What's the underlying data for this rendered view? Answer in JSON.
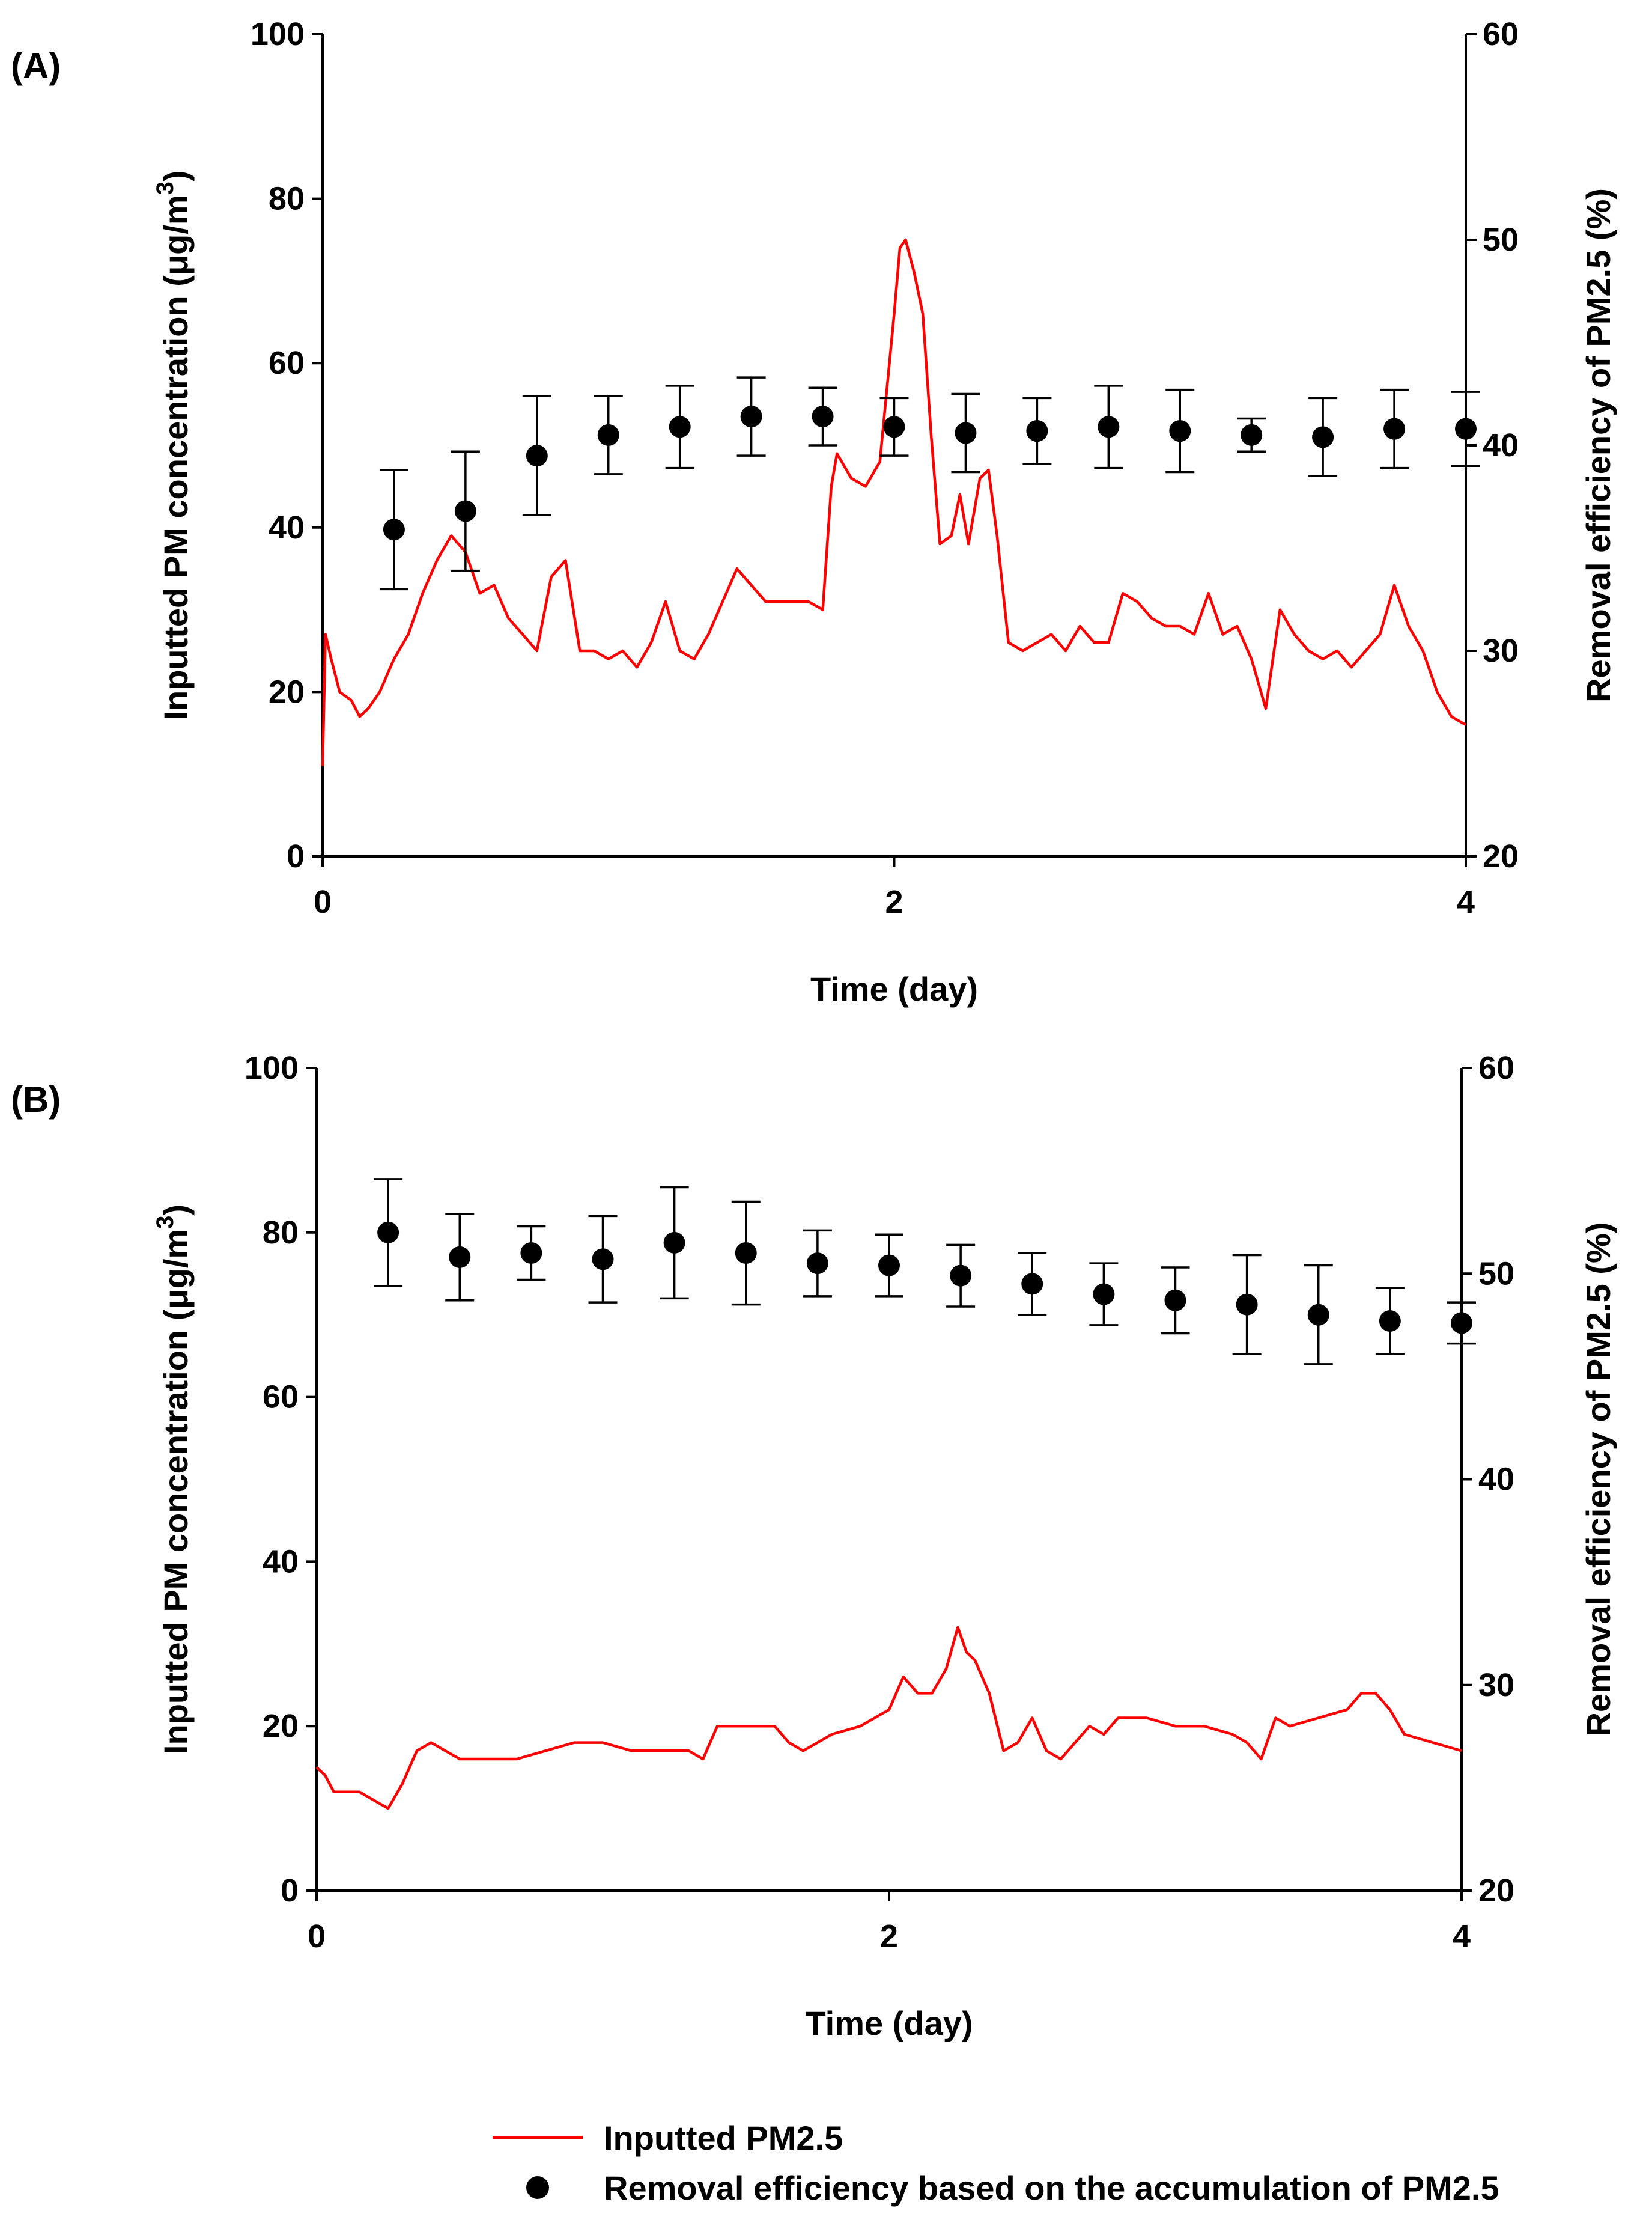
{
  "legend": {
    "line_label": "Inputted PM2.5",
    "marker_label": "Removal efficiency based on the accumulation of PM2.5"
  },
  "colors": {
    "line": "#ff0000",
    "marker": "#000000"
  },
  "chart_data": [
    {
      "panel": "(A)",
      "type": "line+scatter",
      "xlabel": "Time (day)",
      "ylabel": "Inputted PM concentration (μg/m",
      "ylabel_sup": "3",
      "ylabel_close": ")",
      "y2label": "Removal efficiency of PM2.5 (%)",
      "xlim": [
        0,
        4
      ],
      "xticks": [
        0,
        2,
        4
      ],
      "ylim": [
        0,
        100
      ],
      "yticks": [
        0,
        20,
        40,
        60,
        80,
        100
      ],
      "y2lim": [
        20,
        60
      ],
      "y2ticks": [
        20,
        30,
        40,
        50,
        60
      ],
      "series": [
        {
          "name": "Inputted PM2.5",
          "axis": "left",
          "x": [
            0,
            0.01,
            0.03,
            0.06,
            0.1,
            0.13,
            0.16,
            0.2,
            0.25,
            0.3,
            0.35,
            0.4,
            0.45,
            0.5,
            0.55,
            0.6,
            0.65,
            0.7,
            0.75,
            0.8,
            0.85,
            0.9,
            0.95,
            1.0,
            1.05,
            1.1,
            1.15,
            1.2,
            1.25,
            1.3,
            1.35,
            1.4,
            1.45,
            1.5,
            1.55,
            1.6,
            1.65,
            1.7,
            1.75,
            1.78,
            1.8,
            1.85,
            1.9,
            1.95,
            2.0,
            2.02,
            2.04,
            2.07,
            2.1,
            2.13,
            2.16,
            2.2,
            2.23,
            2.26,
            2.3,
            2.33,
            2.36,
            2.4,
            2.45,
            2.5,
            2.55,
            2.6,
            2.65,
            2.7,
            2.75,
            2.8,
            2.85,
            2.9,
            2.95,
            3.0,
            3.05,
            3.1,
            3.15,
            3.2,
            3.25,
            3.3,
            3.35,
            3.4,
            3.45,
            3.5,
            3.55,
            3.6,
            3.65,
            3.7,
            3.75,
            3.8,
            3.85,
            3.9,
            3.95,
            4.0
          ],
          "values": [
            11,
            27,
            24,
            20,
            19,
            17,
            18,
            20,
            24,
            27,
            32,
            36,
            39,
            37,
            32,
            33,
            29,
            27,
            25,
            34,
            36,
            25,
            25,
            24,
            25,
            23,
            26,
            31,
            25,
            24,
            27,
            31,
            35,
            33,
            31,
            31,
            31,
            31,
            30,
            45,
            49,
            46,
            45,
            48,
            66,
            74,
            75,
            71,
            66,
            51,
            38,
            39,
            44,
            38,
            46,
            47,
            39,
            26,
            25,
            26,
            27,
            25,
            28,
            26,
            26,
            32,
            31,
            29,
            28,
            28,
            27,
            32,
            27,
            28,
            24,
            18,
            30,
            27,
            25,
            24,
            25,
            23,
            25,
            27,
            33,
            28,
            25,
            20,
            17,
            16
          ]
        },
        {
          "name": "Removal efficiency based on the accumulation of PM2.5",
          "axis": "right",
          "x": [
            0.25,
            0.5,
            0.75,
            1.0,
            1.25,
            1.5,
            1.75,
            2.0,
            2.25,
            2.5,
            2.75,
            3.0,
            3.25,
            3.5,
            3.75,
            4.0
          ],
          "values": [
            35.9,
            36.8,
            39.5,
            40.5,
            40.9,
            41.4,
            41.4,
            40.9,
            40.6,
            40.7,
            40.9,
            40.7,
            40.5,
            40.4,
            40.8,
            40.8
          ],
          "errors": [
            2.9,
            2.9,
            2.9,
            1.9,
            2.0,
            1.9,
            1.4,
            1.4,
            1.9,
            1.6,
            2.0,
            2.0,
            0.8,
            1.9,
            1.9,
            1.8
          ]
        }
      ]
    },
    {
      "panel": "(B)",
      "type": "line+scatter",
      "xlabel": "Time (day)",
      "ylabel": "Inputted PM concentration (μg/m",
      "ylabel_sup": "3",
      "ylabel_close": ")",
      "y2label": "Removal efficiency of PM2.5 (%)",
      "xlim": [
        0,
        4
      ],
      "xticks": [
        0,
        2,
        4
      ],
      "ylim": [
        0,
        100
      ],
      "yticks": [
        0,
        20,
        40,
        60,
        80,
        100
      ],
      "y2lim": [
        20,
        60
      ],
      "y2ticks": [
        20,
        30,
        40,
        50,
        60
      ],
      "series": [
        {
          "name": "Inputted PM2.5",
          "axis": "left",
          "x": [
            0,
            0.03,
            0.06,
            0.1,
            0.15,
            0.2,
            0.25,
            0.3,
            0.35,
            0.4,
            0.45,
            0.5,
            0.6,
            0.7,
            0.8,
            0.9,
            1.0,
            1.1,
            1.2,
            1.3,
            1.35,
            1.4,
            1.5,
            1.6,
            1.65,
            1.7,
            1.8,
            1.9,
            2.0,
            2.05,
            2.1,
            2.15,
            2.2,
            2.24,
            2.27,
            2.3,
            2.35,
            2.4,
            2.45,
            2.5,
            2.55,
            2.6,
            2.65,
            2.7,
            2.75,
            2.8,
            2.9,
            3.0,
            3.1,
            3.2,
            3.25,
            3.3,
            3.35,
            3.4,
            3.5,
            3.6,
            3.65,
            3.7,
            3.75,
            3.8,
            3.9,
            4.0
          ],
          "values": [
            15,
            14,
            12,
            12,
            12,
            11,
            10,
            13,
            17,
            18,
            17,
            16,
            16,
            16,
            17,
            18,
            18,
            17,
            17,
            17,
            16,
            20,
            20,
            20,
            18,
            17,
            19,
            20,
            22,
            26,
            24,
            24,
            27,
            32,
            29,
            28,
            24,
            17,
            18,
            21,
            17,
            16,
            18,
            20,
            19,
            21,
            21,
            20,
            20,
            19,
            18,
            16,
            21,
            20,
            21,
            22,
            24,
            24,
            22,
            19,
            18,
            17
          ]
        },
        {
          "name": "Removal efficiency based on the accumulation of PM2.5",
          "axis": "right",
          "x": [
            0.25,
            0.5,
            0.75,
            1.0,
            1.25,
            1.5,
            1.75,
            2.0,
            2.25,
            2.5,
            2.75,
            3.0,
            3.25,
            3.5,
            3.75,
            4.0
          ],
          "values": [
            52.0,
            50.8,
            51.0,
            50.7,
            51.5,
            51.0,
            50.5,
            50.4,
            49.9,
            49.5,
            49.0,
            48.7,
            48.5,
            48.0,
            47.7,
            47.6
          ],
          "errors": [
            2.6,
            2.1,
            1.3,
            2.1,
            2.7,
            2.5,
            1.6,
            1.5,
            1.5,
            1.5,
            1.5,
            1.6,
            2.4,
            2.4,
            1.6,
            1.0
          ]
        }
      ]
    }
  ]
}
